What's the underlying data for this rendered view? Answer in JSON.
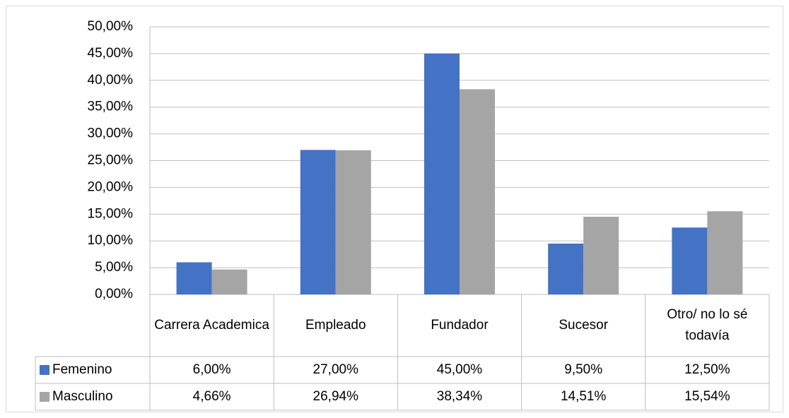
{
  "chart_data": {
    "type": "bar",
    "categories": [
      "Carrera Academica",
      "Empleado",
      "Fundador",
      "Sucesor",
      "Otro/ no lo sé todavía"
    ],
    "series": [
      {
        "name": "Femenino",
        "color": "#4472c4",
        "values": [
          6,
          27,
          45,
          9.5,
          12.5
        ],
        "value_labels": [
          "6,00%",
          "27,00%",
          "45,00%",
          "9,50%",
          "12,50%"
        ]
      },
      {
        "name": "Masculino",
        "color": "#a5a5a5",
        "values": [
          4.66,
          26.94,
          38.34,
          14.51,
          15.54
        ],
        "value_labels": [
          "4,66%",
          "26,94%",
          "38,34%",
          "14,51%",
          "15,54%"
        ]
      }
    ],
    "ylim": [
      0,
      50
    ],
    "yticks": [
      {
        "value": 0,
        "label": "0,00%"
      },
      {
        "value": 5,
        "label": "5,00%"
      },
      {
        "value": 10,
        "label": "10,00%"
      },
      {
        "value": 15,
        "label": "15,00%"
      },
      {
        "value": 20,
        "label": "20,00%"
      },
      {
        "value": 25,
        "label": "25,00%"
      },
      {
        "value": 30,
        "label": "30,00%"
      },
      {
        "value": 35,
        "label": "35,00%"
      },
      {
        "value": 40,
        "label": "40,00%"
      },
      {
        "value": 45,
        "label": "45,00%"
      },
      {
        "value": 50,
        "label": "50,00%"
      }
    ],
    "grid": true
  }
}
